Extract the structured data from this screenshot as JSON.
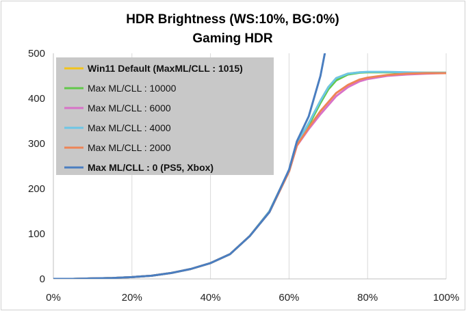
{
  "chart_data": {
    "type": "line",
    "title": "HDR Brightness (WS:10%, BG:0%)",
    "subtitle": "Gaming HDR",
    "xlabel": "",
    "ylabel": "",
    "xlim": [
      0,
      100
    ],
    "ylim": [
      0,
      500
    ],
    "x_ticks": [
      "0%",
      "20%",
      "40%",
      "60%",
      "80%",
      "100%"
    ],
    "y_ticks": [
      "0",
      "100",
      "200",
      "300",
      "400",
      "500"
    ],
    "grid": "vertical",
    "legend_position": "top-left",
    "x": [
      0,
      5,
      10,
      15,
      20,
      25,
      30,
      35,
      40,
      45,
      50,
      55,
      60,
      62,
      65,
      68,
      70,
      72,
      75,
      78,
      80,
      85,
      90,
      95,
      100
    ],
    "series": [
      {
        "name": "Win11 Default (MaxML/CLL : 1015)",
        "color": "#f2c31b",
        "bold": true,
        "values": [
          0,
          0,
          1,
          2,
          4,
          7,
          13,
          22,
          35,
          55,
          95,
          150,
          240,
          300,
          345,
          395,
          425,
          445,
          455,
          458,
          458,
          458,
          457,
          457,
          457
        ]
      },
      {
        "name": "Max ML/CLL : 10000",
        "color": "#62c84a",
        "bold": false,
        "values": [
          0,
          0,
          1,
          2,
          4,
          7,
          13,
          22,
          35,
          55,
          95,
          148,
          238,
          298,
          340,
          390,
          420,
          440,
          453,
          457,
          458,
          458,
          457,
          457,
          457
        ]
      },
      {
        "name": "Max ML/CLL : 6000",
        "color": "#d872c8",
        "bold": false,
        "values": [
          0,
          0,
          1,
          2,
          4,
          7,
          13,
          22,
          35,
          55,
          95,
          148,
          238,
          295,
          332,
          365,
          385,
          405,
          425,
          438,
          443,
          450,
          453,
          455,
          456
        ]
      },
      {
        "name": "Max ML/CLL : 4000",
        "color": "#6dc6e6",
        "bold": false,
        "values": [
          0,
          0,
          1,
          2,
          4,
          7,
          13,
          22,
          35,
          55,
          95,
          150,
          240,
          300,
          345,
          395,
          425,
          445,
          455,
          458,
          459,
          459,
          458,
          457,
          457
        ]
      },
      {
        "name": "Max ML/CLL : 2000",
        "color": "#ee8456",
        "bold": false,
        "values": [
          0,
          0,
          1,
          2,
          4,
          7,
          13,
          22,
          35,
          55,
          95,
          148,
          238,
          296,
          335,
          372,
          392,
          412,
          430,
          442,
          446,
          452,
          455,
          456,
          456
        ]
      },
      {
        "name": "Max ML/CLL : 0 (PS5, Xbox)",
        "color": "#4a7ec0",
        "bold": true,
        "values": [
          0,
          0,
          1,
          2,
          4,
          7,
          13,
          22,
          35,
          55,
          95,
          148,
          242,
          305,
          360,
          450,
          540,
          null,
          null,
          null,
          null,
          null,
          null,
          null,
          null
        ]
      }
    ]
  }
}
